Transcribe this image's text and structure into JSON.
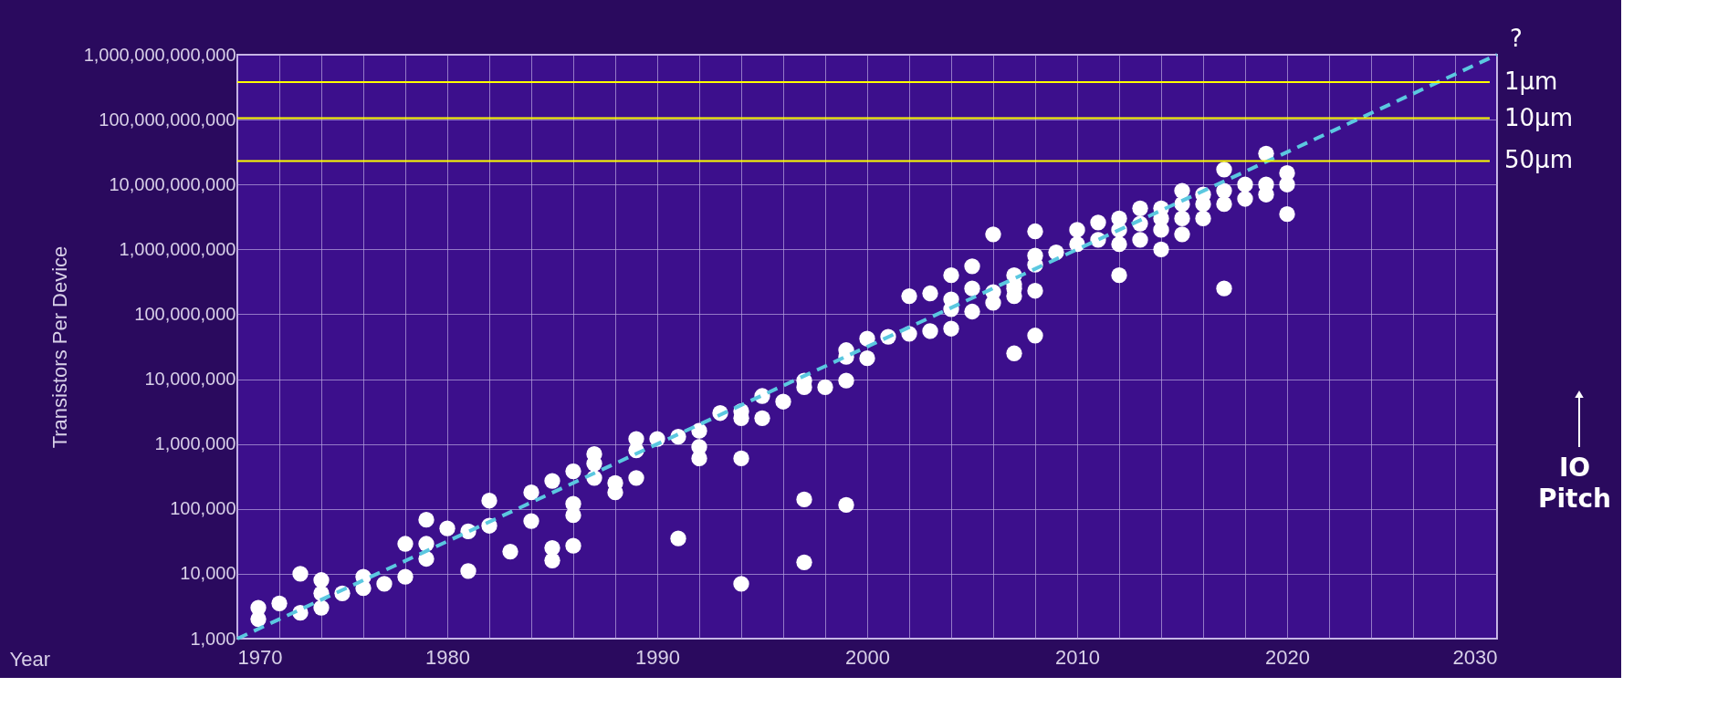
{
  "chart_data": {
    "type": "scatter",
    "xlabel": "Year",
    "ylabel": "Transistors Per Device",
    "log": "y",
    "grid": true,
    "marker": "circle",
    "xlim": [
      1970,
      2030
    ],
    "ylim": [
      1000,
      1000000000000
    ],
    "xticks": [
      1970,
      {
        "value": 1972,
        "label": null
      },
      {
        "value": 1974,
        "label": null
      },
      {
        "value": 1976,
        "label": null
      },
      {
        "value": 1978,
        "label": null
      },
      1980,
      {
        "value": 1982,
        "label": null
      },
      {
        "value": 1984,
        "label": null
      },
      {
        "value": 1986,
        "label": null
      },
      {
        "value": 1988,
        "label": null
      },
      1990,
      {
        "value": 1992,
        "label": null
      },
      {
        "value": 1994,
        "label": null
      },
      {
        "value": 1996,
        "label": null
      },
      {
        "value": 1998,
        "label": null
      },
      2000,
      {
        "value": 2002,
        "label": null
      },
      {
        "value": 2004,
        "label": null
      },
      {
        "value": 2006,
        "label": null
      },
      {
        "value": 2008,
        "label": null
      },
      2010,
      {
        "value": 2012,
        "label": null
      },
      {
        "value": 2014,
        "label": null
      },
      {
        "value": 2016,
        "label": null
      },
      {
        "value": 2018,
        "label": null
      },
      2020,
      {
        "value": 2022,
        "label": null
      },
      {
        "value": 2024,
        "label": null
      },
      {
        "value": 2026,
        "label": null
      },
      {
        "value": 2028,
        "label": null
      },
      2030
    ],
    "yticks": [
      {
        "value": 1000,
        "label": "1,000"
      },
      {
        "value": 10000,
        "label": "10,000"
      },
      {
        "value": 100000,
        "label": "100,000"
      },
      {
        "value": 1000000,
        "label": "1,000,000"
      },
      {
        "value": 10000000,
        "label": "10,000,000"
      },
      {
        "value": 100000000,
        "label": "100,000,000"
      },
      {
        "value": 1000000000,
        "label": "1,000,000,000"
      },
      {
        "value": 10000000000,
        "label": "10,000,000,000"
      },
      {
        "value": 100000000000,
        "label": "100,000,000,000"
      },
      {
        "value": 1000000000000,
        "label": "1,000,000,000,000"
      }
    ],
    "series": [
      {
        "color": "#ffffff",
        "x": [
          1971,
          1971,
          1972,
          1973,
          1973,
          1974,
          1974,
          1974,
          1975,
          1976,
          1976,
          1977,
          1978,
          1978,
          1979,
          1979,
          1979,
          1980,
          1981,
          1981,
          1982,
          1982,
          1983,
          1984,
          1984,
          1985,
          1985,
          1985,
          1986,
          1986,
          1986,
          1986,
          1987,
          1987,
          1987,
          1988,
          1988,
          1989,
          1989,
          1989,
          1990,
          1991,
          1991,
          1992,
          1992,
          1992,
          1993,
          1994,
          1994,
          1994,
          1994,
          1995,
          1995,
          1996,
          1997,
          1997,
          1997,
          1997,
          1998,
          1999,
          1999,
          1999,
          1999,
          2000,
          2000,
          2001,
          2002,
          2002,
          2003,
          2003,
          2004,
          2004,
          2004,
          2004,
          2005,
          2005,
          2005,
          2006,
          2006,
          2006,
          2007,
          2007,
          2007,
          2007,
          2007,
          2008,
          2008,
          2008,
          2008,
          2008,
          2009,
          2010,
          2010,
          2011,
          2011,
          2012,
          2012,
          2012,
          2012,
          2013,
          2013,
          2013,
          2014,
          2014,
          2014,
          2014,
          2015,
          2015,
          2015,
          2015,
          2016,
          2016,
          2016,
          2017,
          2017,
          2017,
          2017,
          2018,
          2018,
          2019,
          2019,
          2019,
          2020,
          2020,
          2020
        ],
        "values": [
          2000,
          3000,
          3500,
          2500,
          10000,
          3000,
          5000,
          8000,
          5000,
          6000,
          9000,
          7000,
          9000,
          29000,
          17000,
          29000,
          68000,
          50000,
          11000,
          45000,
          55000,
          134000,
          22000,
          65000,
          180000,
          16000,
          25000,
          270000,
          27000,
          80000,
          120000,
          380000,
          300000,
          500000,
          700000,
          180000,
          250000,
          300000,
          800000,
          1200000,
          1200000,
          35000,
          1300000,
          600000,
          900000,
          1600000,
          3000000,
          7000,
          600000,
          2500000,
          3200000,
          2500000,
          5500000,
          4500000,
          15000,
          140000,
          7500000,
          9500000,
          7500000,
          115000,
          9500000,
          22000000,
          28000000,
          21000000,
          42000000,
          45000000,
          50000000,
          190000000,
          55000000,
          210000000,
          60000000,
          120000000,
          170000000,
          400000000,
          110000000,
          250000000,
          550000000,
          150000000,
          220000000,
          1700000000,
          25000000,
          190000000,
          250000000,
          290000000,
          400000000,
          47000000,
          230000000,
          580000000,
          800000000,
          1900000000,
          900000000,
          1200000000,
          2000000000,
          1400000000,
          2600000000,
          400000000,
          1200000000,
          2000000000,
          3000000000,
          1400000000,
          2500000000,
          4300000000,
          1000000000,
          2000000000,
          3000000000,
          4300000000,
          1700000000,
          3000000000,
          5000000000,
          8000000000,
          3000000000,
          5000000000,
          7000000000,
          250000000,
          5000000000,
          8000000000,
          17000000000,
          6000000000,
          10000000000,
          7000000000,
          10000000000,
          30000000000,
          3500000000,
          10000000000,
          15000000000
        ]
      },
      {
        "type": "line",
        "color": "#5bc8e0",
        "line_style": "dashed",
        "marker": "none",
        "x": [
          1970,
          2030
        ],
        "values": [
          1000,
          1000000000000
        ]
      }
    ],
    "ref_lines": [
      {
        "axis": "y",
        "value": 380000000000,
        "label": "1µm",
        "color": "#ffff00"
      },
      {
        "axis": "y",
        "value": 105000000000,
        "label": "10µm",
        "color": "#ffff00"
      },
      {
        "axis": "y",
        "value": 23000000000,
        "label": "50µm",
        "color": "#ffff00"
      }
    ],
    "annotations": [
      "?",
      "IO Pitch"
    ]
  }
}
